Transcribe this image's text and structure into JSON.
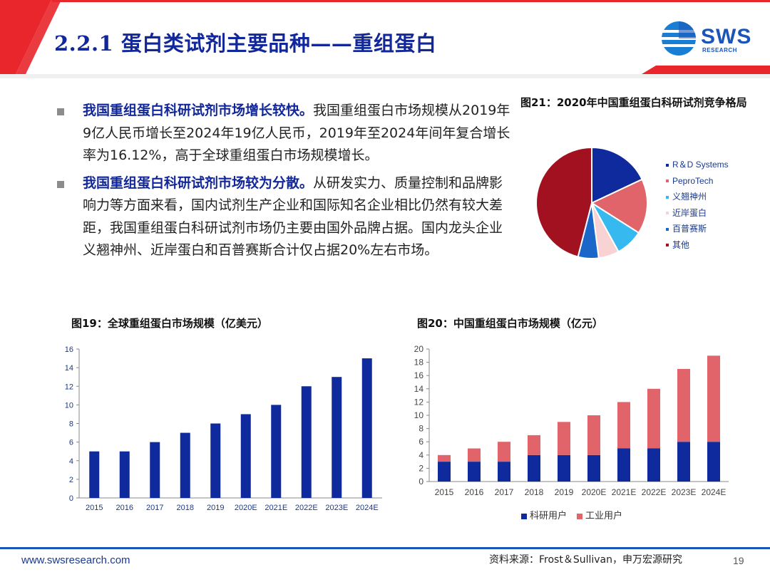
{
  "header": {
    "title": "2.2.1 蛋白类试剂主要品种——重组蛋白",
    "logo_text": "SWS",
    "logo_sub": "RESEARCH",
    "accent": "#e8262b",
    "brand": "#12279a"
  },
  "bullets": [
    {
      "lead": "我国重组蛋白科研试剂市场增长较快。",
      "text": "我国重组蛋白市场规模从2019年9亿人民币增长至2024年19亿人民币，2019年至2024年间年复合增长率为16.12%，高于全球重组蛋白市场规模增长。"
    },
    {
      "lead": "我国重组蛋白科研试剂市场较为分散。",
      "text": "从研发实力、质量控制和品牌影响力等方面来看，国内试剂生产企业和国际知名企业相比仍然有较大差距，我国重组蛋白科研试剂市场仍主要由国外品牌占据。国内龙头企业义翘神州、近岸蛋白和百普赛斯合计仅占据20%左右市场。"
    }
  ],
  "figures": {
    "fig19_title": "图19：全球重组蛋白市场规模（亿美元）",
    "fig20_title": "图20：中国重组蛋白市场规模（亿元）",
    "fig21_title": "图21：2020年中国重组蛋白科研试剂竞争格局"
  },
  "footer": {
    "url": "www.swsresearch.com",
    "source": "资料来源：Frost＆Sullivan，申万宏源研究",
    "page": "19"
  },
  "chart_data": [
    {
      "id": "fig19",
      "type": "bar",
      "categories": [
        "2015",
        "2016",
        "2017",
        "2018",
        "2019",
        "2020E",
        "2021E",
        "2022E",
        "2023E",
        "2024E"
      ],
      "values": [
        5,
        5,
        6,
        7,
        8,
        9,
        10,
        12,
        13,
        15
      ],
      "ylim": [
        0,
        16
      ],
      "yticks": [
        "0",
        "2",
        "4",
        "6",
        "8",
        "10",
        "12",
        "14",
        "16"
      ],
      "color": "#0f2a9c",
      "grid": false
    },
    {
      "id": "fig20",
      "type": "bar",
      "stacked": true,
      "categories": [
        "2015",
        "2016",
        "2017",
        "2018",
        "2019",
        "2020E",
        "2021E",
        "2022E",
        "2023E",
        "2024E"
      ],
      "series": [
        {
          "name": "科研用户",
          "values": [
            3,
            3,
            3,
            4,
            4,
            4,
            5,
            5,
            6,
            6
          ],
          "color": "#0f2a9c"
        },
        {
          "name": "工业用户",
          "values": [
            1,
            2,
            3,
            3,
            5,
            6,
            7,
            9,
            11,
            13
          ],
          "color": "#e06469"
        }
      ],
      "ylim": [
        0,
        20
      ],
      "yticks": [
        "0",
        "2",
        "4",
        "6",
        "8",
        "10",
        "12",
        "14",
        "16",
        "18",
        "20"
      ],
      "legend": "bottom",
      "grid": false
    },
    {
      "id": "fig21",
      "type": "pie",
      "labels": [
        "R＆D Systems",
        "PeproTech",
        "义翘神州",
        "近岸蛋白",
        "百普赛斯",
        "其他"
      ],
      "values": [
        18,
        16,
        8,
        6,
        6,
        46
      ],
      "colors": [
        "#0f2a9c",
        "#e06469",
        "#36b9ef",
        "#f9d2d3",
        "#1a66c9",
        "#a1111f"
      ],
      "legend": "right"
    }
  ]
}
